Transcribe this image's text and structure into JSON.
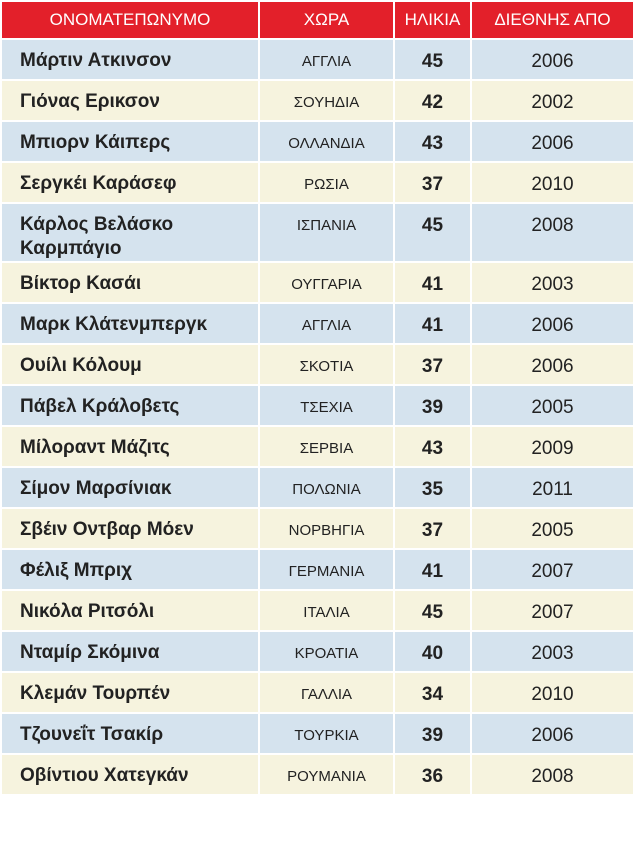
{
  "header": {
    "columns": [
      "ΟΝΟΜΑΤΕΠΩΝΥΜΟ",
      "ΧΩΡΑ",
      "ΗΛΙΚΙΑ",
      "ΔΙΕΘΝΗΣ ΑΠΟ"
    ]
  },
  "table": {
    "rows": [
      [
        "Μάρτιν Ατκινσον",
        "ΑΓΓΛΙΑ",
        45,
        2006
      ],
      [
        "Γιόνας Ερικσον",
        "ΣΟΥΗΔΙΑ",
        42,
        2002
      ],
      [
        "Μπιορν Κάιπερς",
        "ΟΛΛΑΝΔΙΑ",
        43,
        2006
      ],
      [
        "Σεργκέι Καράσεφ",
        "ΡΩΣΙΑ",
        37,
        2010
      ],
      [
        "Κάρλος Βελάσκο Καρμπάγιο",
        "ΙΣΠΑΝΙΑ",
        45,
        2008
      ],
      [
        "Βίκτορ Κασάι",
        "ΟΥΓΓΑΡΙΑ",
        41,
        2003
      ],
      [
        "Μαρκ Κλάτενμπεργκ",
        "ΑΓΓΛΙΑ",
        41,
        2006
      ],
      [
        "Ουίλι Κόλουμ",
        "ΣΚΟΤΙΑ",
        37,
        2006
      ],
      [
        "Πάβελ Κράλοβετς",
        "ΤΣΕΧΙΑ",
        39,
        2005
      ],
      [
        "Μίλοραντ Μάζιτς",
        "ΣΕΡΒΙΑ",
        43,
        2009
      ],
      [
        "Σίμον Μαρσίνιακ",
        "ΠΟΛΩΝΙΑ",
        35,
        2011
      ],
      [
        "Σβέιν Οντβαρ Μόεν",
        "ΝΟΡΒΗΓΙΑ",
        37,
        2005
      ],
      [
        "Φέλιξ Μπριχ",
        "ΓΕΡΜΑΝΙΑ",
        41,
        2007
      ],
      [
        "Νικόλα Ριτσόλι",
        "ΙΤΑΛΙΑ",
        45,
        2007
      ],
      [
        "Νταμίρ Σκόμινα",
        "ΚΡΟΑΤΙΑ",
        40,
        2003
      ],
      [
        "Κλεμάν Τουρπέν",
        "ΓΑΛΛΙΑ",
        34,
        2010
      ],
      [
        "Τζουνεΐτ Τσακίρ",
        "ΤΟΥΡΚΙΑ",
        39,
        2006
      ],
      [
        "Οβίντιου Χατεγκάν",
        "ΡΟΥΜΑΝΙΑ",
        36,
        2008
      ]
    ]
  }
}
